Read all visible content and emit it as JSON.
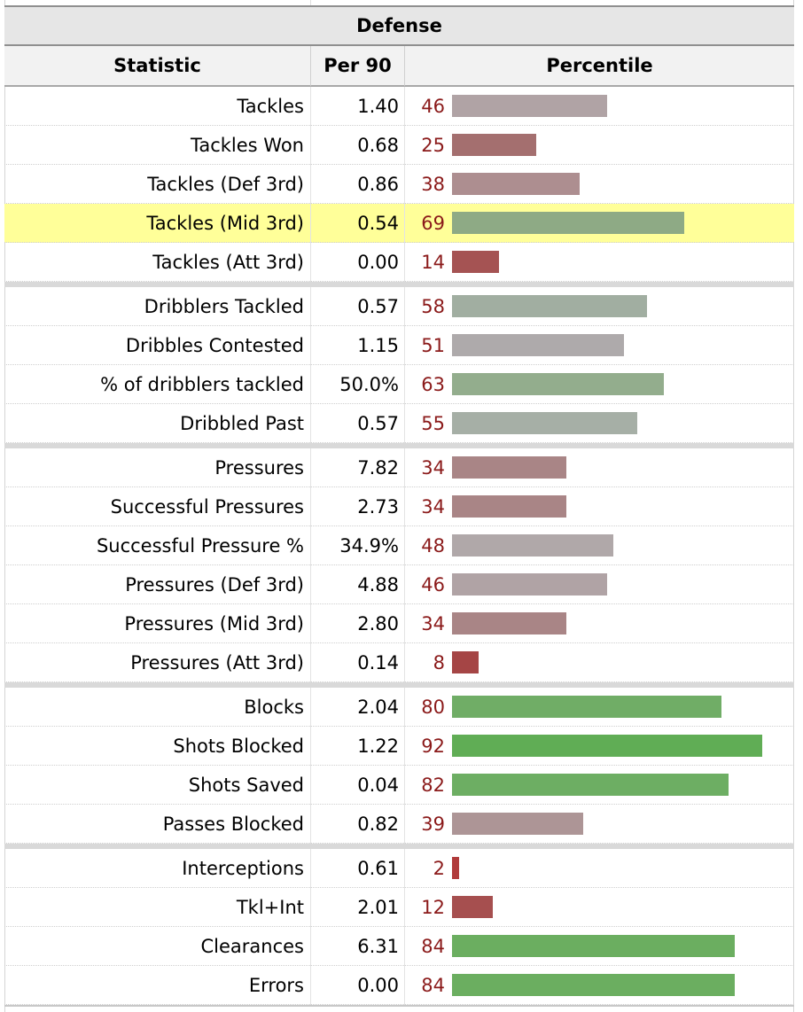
{
  "table": {
    "title": "Defense",
    "columns": {
      "statistic": "Statistic",
      "per90": "Per 90",
      "percentile": "Percentile"
    },
    "groups": [
      {
        "rows": [
          {
            "stat": "Tackles",
            "per90": "1.40",
            "pct": 46,
            "color": "#b0a3a5"
          },
          {
            "stat": "Tackles Won",
            "per90": "0.68",
            "pct": 25,
            "color": "#a46f6f"
          },
          {
            "stat": "Tackles (Def 3rd)",
            "per90": "0.86",
            "pct": 38,
            "color": "#ad8e90"
          },
          {
            "stat": "Tackles (Mid 3rd)",
            "per90": "0.54",
            "pct": 69,
            "color": "#8eaa85",
            "highlight": true
          },
          {
            "stat": "Tackles (Att 3rd)",
            "per90": "0.00",
            "pct": 14,
            "color": "#a55353"
          }
        ]
      },
      {
        "rows": [
          {
            "stat": "Dribblers Tackled",
            "per90": "0.57",
            "pct": 58,
            "color": "#a1aea1"
          },
          {
            "stat": "Dribbles Contested",
            "per90": "1.15",
            "pct": 51,
            "color": "#aeaaab"
          },
          {
            "stat": "% of dribblers tackled",
            "per90": "50.0%",
            "pct": 63,
            "color": "#93ad8d"
          },
          {
            "stat": "Dribbled Past",
            "per90": "0.57",
            "pct": 55,
            "color": "#a6afa6"
          }
        ]
      },
      {
        "rows": [
          {
            "stat": "Pressures",
            "per90": "7.82",
            "pct": 34,
            "color": "#a98586"
          },
          {
            "stat": "Successful Pressures",
            "per90": "2.73",
            "pct": 34,
            "color": "#a98586"
          },
          {
            "stat": "Successful Pressure %",
            "per90": "34.9%",
            "pct": 48,
            "color": "#b0a8a9"
          },
          {
            "stat": "Pressures (Def 3rd)",
            "per90": "4.88",
            "pct": 46,
            "color": "#b0a3a5"
          },
          {
            "stat": "Pressures (Mid 3rd)",
            "per90": "2.80",
            "pct": 34,
            "color": "#a98586"
          },
          {
            "stat": "Pressures (Att 3rd)",
            "per90": "0.14",
            "pct": 8,
            "color": "#a54545"
          }
        ]
      },
      {
        "rows": [
          {
            "stat": "Blocks",
            "per90": "2.04",
            "pct": 80,
            "color": "#70ad66"
          },
          {
            "stat": "Shots Blocked",
            "per90": "1.22",
            "pct": 92,
            "color": "#60ad55"
          },
          {
            "stat": "Shots Saved",
            "per90": "0.04",
            "pct": 82,
            "color": "#6dae63"
          },
          {
            "stat": "Passes Blocked",
            "per90": "0.82",
            "pct": 39,
            "color": "#ad9596"
          }
        ]
      },
      {
        "rows": [
          {
            "stat": "Interceptions",
            "per90": "0.61",
            "pct": 2,
            "color": "#b03a3a"
          },
          {
            "stat": "Tkl+Int",
            "per90": "2.01",
            "pct": 12,
            "color": "#a64f4f"
          },
          {
            "stat": "Clearances",
            "per90": "6.31",
            "pct": 84,
            "color": "#6bae60"
          },
          {
            "stat": "Errors",
            "per90": "0.00",
            "pct": 84,
            "color": "#6bae60"
          }
        ]
      }
    ]
  }
}
